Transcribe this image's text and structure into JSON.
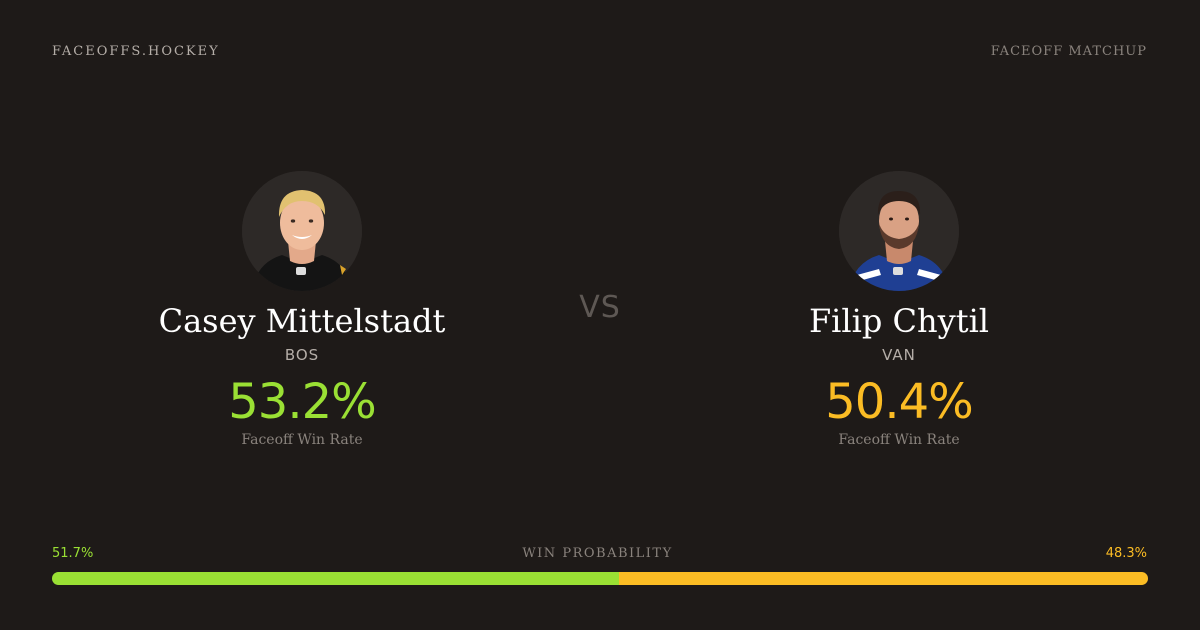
{
  "header": {
    "brand": "FACEOFFS.HOCKEY",
    "label": "FACEOFF MATCHUP"
  },
  "players": {
    "left": {
      "name": "Casey Mittelstadt",
      "team": "BOS",
      "rate": "53.2%",
      "rate_label": "Faceoff Win Rate",
      "color": "#9ae034"
    },
    "right": {
      "name": "Filip Chytil",
      "team": "VAN",
      "rate": "50.4%",
      "rate_label": "Faceoff Win Rate",
      "color": "#fbbc24"
    }
  },
  "vs": "VS",
  "probability": {
    "title": "WIN PROBABILITY",
    "left_label": "51.7%",
    "right_label": "48.3%",
    "left_value": 51.7,
    "right_value": 48.3
  },
  "icons": {
    "left_avatar": "player-headshot-icon",
    "right_avatar": "player-headshot-icon"
  }
}
